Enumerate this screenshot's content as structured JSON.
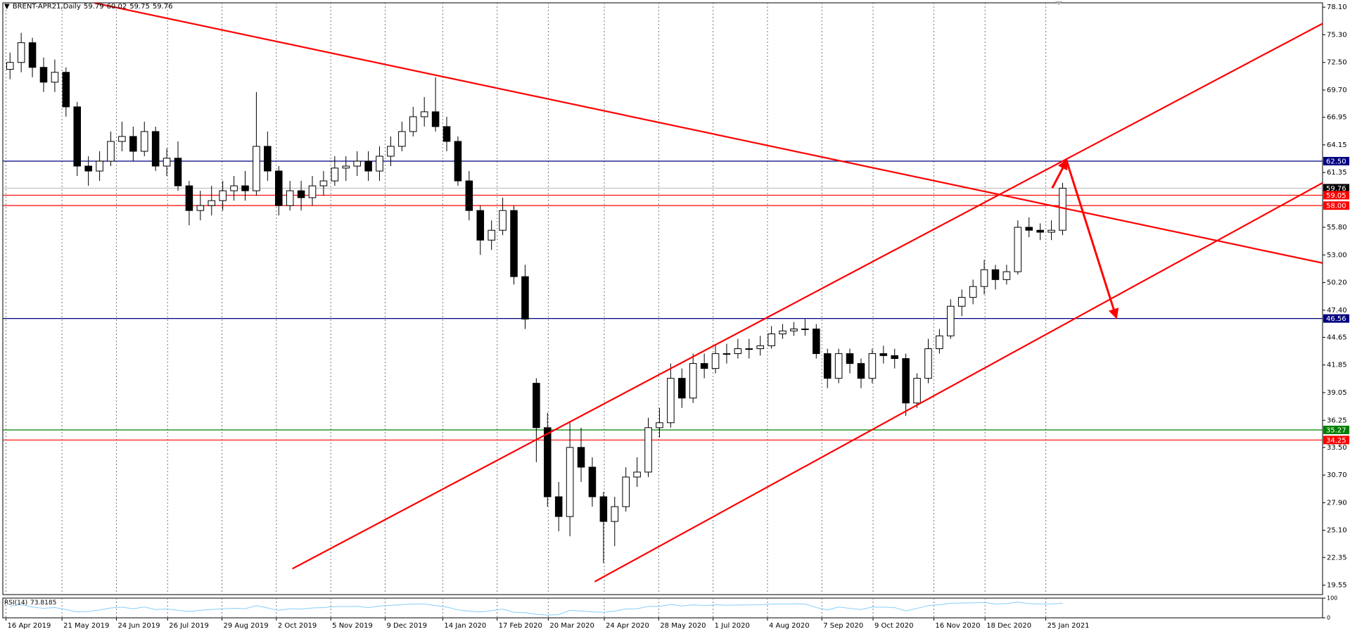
{
  "chart_data": {
    "type": "candlestick",
    "title": "BRENT-APR21,Daily",
    "quote": [
      59.79,
      60.02,
      59.75,
      59.76
    ],
    "x": [
      "2019-04-15",
      "2019-04-22",
      "2019-04-29",
      "2019-05-06",
      "2019-05-13",
      "2019-05-20",
      "2019-05-27",
      "2019-06-03",
      "2019-06-10",
      "2019-06-17",
      "2019-06-24",
      "2019-07-01",
      "2019-07-08",
      "2019-07-15",
      "2019-07-22",
      "2019-07-29",
      "2019-08-05",
      "2019-08-12",
      "2019-08-19",
      "2019-08-26",
      "2019-09-02",
      "2019-09-09",
      "2019-09-16",
      "2019-09-23",
      "2019-09-30",
      "2019-10-07",
      "2019-10-14",
      "2019-10-21",
      "2019-10-28",
      "2019-11-04",
      "2019-11-11",
      "2019-11-18",
      "2019-11-25",
      "2019-12-02",
      "2019-12-09",
      "2019-12-16",
      "2019-12-23",
      "2019-12-30",
      "2020-01-06",
      "2020-01-13",
      "2020-01-20",
      "2020-01-27",
      "2020-02-03",
      "2020-02-10",
      "2020-02-17",
      "2020-02-24",
      "2020-03-02",
      "2020-03-09",
      "2020-03-16",
      "2020-03-23",
      "2020-03-30",
      "2020-04-06",
      "2020-04-13",
      "2020-04-20",
      "2020-04-27",
      "2020-05-04",
      "2020-05-11",
      "2020-05-18",
      "2020-05-25",
      "2020-06-01",
      "2020-06-08",
      "2020-06-15",
      "2020-06-22",
      "2020-06-29",
      "2020-07-06",
      "2020-07-13",
      "2020-07-20",
      "2020-07-27",
      "2020-08-03",
      "2020-08-10",
      "2020-08-17",
      "2020-08-24",
      "2020-08-31",
      "2020-09-07",
      "2020-09-14",
      "2020-09-21",
      "2020-09-28",
      "2020-10-05",
      "2020-10-12",
      "2020-10-19",
      "2020-10-26",
      "2020-11-02",
      "2020-11-09",
      "2020-11-16",
      "2020-11-23",
      "2020-11-30",
      "2020-12-07",
      "2020-12-14",
      "2020-12-21",
      "2020-12-28",
      "2021-01-04",
      "2021-01-11",
      "2021-01-18",
      "2021-01-25",
      "2021-02-01"
    ],
    "open": [
      71.8,
      72.5,
      74.5,
      72.0,
      70.5,
      71.5,
      68.0,
      62.0,
      61.5,
      62.5,
      64.5,
      65.0,
      63.5,
      65.5,
      62.0,
      62.8,
      60.0,
      57.5,
      58.0,
      58.5,
      59.5,
      60.0,
      59.5,
      64.0,
      61.5,
      58.0,
      59.5,
      58.8,
      60.0,
      60.5,
      61.8,
      62.0,
      62.5,
      61.5,
      63.0,
      64.0,
      65.5,
      67.0,
      67.5,
      66.0,
      64.5,
      60.5,
      57.5,
      54.5,
      55.5,
      57.5,
      50.8,
      40.0,
      35.5,
      28.5,
      26.5,
      33.5,
      31.5,
      28.5,
      26.0,
      27.5,
      30.5,
      31.0,
      35.5,
      36.0,
      40.5,
      38.5,
      42.0,
      41.5,
      43.0,
      43.0,
      43.5,
      43.5,
      43.8,
      45.0,
      45.3,
      45.5,
      45.5,
      43.0,
      40.5,
      43.0,
      42.0,
      40.5,
      43.0,
      42.8,
      42.5,
      38.0,
      40.5,
      43.5,
      44.8,
      47.8,
      48.7,
      49.8,
      51.5,
      50.5,
      51.3,
      55.8,
      55.5,
      55.3,
      55.5
    ],
    "high": [
      73.5,
      75.5,
      75.0,
      73.0,
      72.8,
      72.0,
      68.5,
      63.0,
      63.5,
      65.5,
      66.5,
      66.0,
      66.5,
      66.0,
      63.8,
      64.5,
      60.5,
      59.5,
      60.0,
      60.5,
      61.0,
      61.5,
      69.5,
      65.5,
      62.0,
      60.5,
      60.5,
      61.0,
      61.5,
      63.0,
      63.0,
      63.5,
      63.5,
      64.0,
      65.0,
      66.5,
      68.0,
      69.0,
      71.0,
      67.0,
      65.0,
      61.5,
      58.0,
      56.5,
      58.8,
      58.0,
      52.0,
      40.5,
      37.0,
      30.0,
      36.0,
      35.5,
      32.5,
      29.0,
      28.5,
      31.5,
      32.5,
      36.5,
      37.5,
      42.0,
      41.5,
      43.0,
      43.0,
      43.8,
      44.0,
      44.5,
      44.5,
      44.8,
      45.8,
      46.0,
      46.2,
      46.5,
      46.0,
      43.5,
      43.5,
      43.5,
      42.5,
      43.5,
      43.8,
      43.5,
      43.0,
      41.0,
      44.5,
      45.5,
      48.5,
      49.5,
      50.5,
      52.5,
      52.0,
      52.0,
      56.5,
      56.8,
      56.2,
      56.5,
      60.3
    ],
    "low": [
      70.8,
      71.5,
      71.0,
      69.5,
      69.5,
      67.0,
      61.0,
      60.0,
      60.5,
      62.0,
      63.5,
      62.5,
      63.0,
      61.5,
      61.0,
      59.5,
      56.0,
      56.5,
      57.0,
      57.5,
      58.5,
      58.5,
      59.0,
      60.5,
      57.0,
      57.5,
      57.5,
      58.0,
      59.0,
      60.0,
      60.5,
      61.0,
      60.5,
      60.5,
      62.0,
      63.5,
      65.0,
      66.0,
      65.5,
      63.5,
      60.0,
      56.5,
      53.0,
      53.5,
      55.0,
      50.0,
      45.5,
      32.0,
      27.5,
      25.0,
      24.5,
      30.0,
      27.5,
      21.8,
      23.5,
      27.0,
      29.5,
      30.5,
      34.5,
      35.5,
      37.5,
      38.0,
      40.5,
      41.0,
      42.0,
      42.5,
      42.5,
      42.8,
      43.5,
      44.5,
      44.8,
      44.8,
      42.5,
      39.5,
      40.0,
      41.0,
      39.5,
      40.0,
      42.0,
      41.5,
      36.7,
      37.5,
      40.0,
      43.0,
      44.5,
      46.8,
      48.0,
      49.0,
      49.5,
      50.0,
      51.0,
      54.8,
      54.5,
      54.5,
      55.0
    ],
    "close": [
      72.5,
      74.5,
      72.0,
      70.5,
      71.5,
      68.0,
      62.0,
      61.5,
      62.5,
      64.5,
      65.0,
      63.5,
      65.5,
      62.0,
      62.8,
      60.0,
      57.5,
      58.0,
      58.5,
      59.5,
      60.0,
      59.5,
      64.0,
      61.5,
      58.0,
      59.5,
      58.8,
      60.0,
      60.5,
      61.8,
      62.0,
      62.5,
      61.5,
      63.0,
      64.0,
      65.5,
      67.0,
      67.5,
      66.0,
      64.5,
      60.5,
      57.5,
      54.5,
      55.5,
      57.5,
      50.8,
      46.5,
      35.5,
      28.5,
      26.5,
      33.5,
      31.5,
      28.5,
      26.0,
      27.5,
      30.5,
      31.0,
      35.5,
      36.0,
      40.5,
      38.5,
      42.0,
      41.5,
      43.0,
      43.0,
      43.5,
      43.5,
      43.8,
      45.0,
      45.3,
      45.5,
      45.5,
      43.0,
      40.5,
      43.0,
      42.0,
      40.5,
      43.0,
      42.8,
      42.5,
      38.0,
      40.5,
      43.5,
      44.8,
      47.8,
      48.7,
      49.8,
      51.5,
      50.5,
      51.3,
      55.8,
      55.5,
      55.3,
      55.5,
      59.76
    ],
    "up_color": "#ffffff",
    "down_color": "#000000",
    "xlim": [
      "2019-04-14",
      "2021-07-17"
    ],
    "xticks": [
      {
        "value": "2019-04-16",
        "label": "16 Apr 2019"
      },
      {
        "value": "2019-05-21",
        "label": "21 May 2019"
      },
      {
        "value": "2019-06-24",
        "label": "24 Jun 2019"
      },
      {
        "value": "2019-07-26",
        "label": "26 Jul 2019"
      },
      {
        "value": "2019-08-29",
        "label": "29 Aug 2019"
      },
      {
        "value": "2019-10-02",
        "label": "2 Oct 2019"
      },
      {
        "value": "2019-11-05",
        "label": "5 Nov 2019"
      },
      {
        "value": "2019-12-09",
        "label": "9 Dec 2019"
      },
      {
        "value": "2020-01-14",
        "label": "14 Jan 2020"
      },
      {
        "value": "2020-02-17",
        "label": "17 Feb 2020"
      },
      {
        "value": "2020-03-20",
        "label": "20 Mar 2020"
      },
      {
        "value": "2020-04-24",
        "label": "24 Apr 2020"
      },
      {
        "value": "2020-05-28",
        "label": "28 May 2020"
      },
      {
        "value": "2020-07-01",
        "label": "1 Jul 2020"
      },
      {
        "value": "2020-08-04",
        "label": "4 Aug 2020"
      },
      {
        "value": "2020-09-07",
        "label": "7 Sep 2020"
      },
      {
        "value": "2020-10-09",
        "label": "9 Oct 2020"
      },
      {
        "value": "2020-11-16",
        "label": "16 Nov 2020"
      },
      {
        "value": "2020-12-18",
        "label": "18 Dec 2020"
      },
      {
        "value": "2021-01-25",
        "label": "25 Jan 2021"
      }
    ],
    "ylim": [
      18.59,
      78.54
    ],
    "yticks": [
      {
        "value": 78.1,
        "label": "78.10"
      },
      {
        "value": 75.3,
        "label": "75.30"
      },
      {
        "value": 72.5,
        "label": "72.50"
      },
      {
        "value": 69.7,
        "label": "69.70"
      },
      66.95,
      64.15,
      61.35,
      {
        "value": 55.8,
        "label": "55.80"
      },
      {
        "value": 53,
        "label": "53.00"
      },
      {
        "value": 50.2,
        "label": "50.20"
      },
      {
        "value": 47.4,
        "label": "47.40"
      },
      44.65,
      41.85,
      39.05,
      36.25,
      {
        "value": 33.5,
        "label": "33.50"
      },
      {
        "value": 30.7,
        "label": "30.70"
      },
      {
        "value": 27.9,
        "label": "27.90"
      },
      {
        "value": 25.1,
        "label": "25.10"
      },
      22.35,
      19.55
    ],
    "grid": true,
    "levels": [
      {
        "value": 62.5,
        "label": "62.50",
        "color": "#000080",
        "box_color": "#000080"
      },
      {
        "value": 59.76,
        "color": "#c0c0c0",
        "box_color": "#000000"
      },
      {
        "value": 59.05,
        "color": "#ff0000",
        "box_color": "#ff0000"
      },
      {
        "value": 58,
        "label": "58.00",
        "color": "#ff0000",
        "box_color": "#ff0000"
      },
      {
        "value": 46.56,
        "color": "#000080",
        "box_color": "#000080"
      },
      {
        "value": 35.27,
        "color": "#008000",
        "box_color": "#008000"
      },
      {
        "value": 34.25,
        "color": "#ff0000",
        "box_color": "#ff0000"
      }
    ],
    "trendlines": [
      {
        "x": [
          "2019-06-10",
          "2021-07-17"
        ],
        "y": [
          78.54,
          52.18
        ],
        "color": "#ff0000"
      },
      {
        "x": [
          "2019-10-12",
          "2021-07-17"
        ],
        "y": [
          21.21,
          76.44
        ],
        "color": "#ff0000"
      },
      {
        "x": [
          "2020-04-18",
          "2021-07-17"
        ],
        "y": [
          19.9,
          60.3
        ],
        "color": "#ff0000"
      }
    ],
    "arrows": [
      {
        "x": [
          "2021-01-29",
          "2021-02-07"
        ],
        "y": [
          59.77,
          62.55
        ],
        "color": "#ff0000"
      },
      {
        "x": [
          "2021-02-07",
          "2021-03-10"
        ],
        "y": [
          62.55,
          46.69
        ],
        "color": "#ff0000"
      }
    ],
    "rsi": {
      "label": "RSI(14)",
      "value": 73.8185,
      "color": "#87cefa",
      "ylim": [
        0,
        100
      ],
      "yticks": [
        0,
        100
      ],
      "values": [
        60,
        66,
        55,
        48,
        52,
        42,
        30,
        32,
        40,
        50,
        54,
        46,
        55,
        42,
        45,
        38,
        32,
        38,
        42,
        46,
        48,
        46,
        62,
        50,
        38,
        46,
        44,
        50,
        52,
        57,
        57,
        58,
        52,
        60,
        63,
        67,
        70,
        70,
        62,
        55,
        40,
        34,
        30,
        36,
        44,
        28,
        26,
        18,
        14,
        16,
        38,
        35,
        30,
        28,
        34,
        45,
        46,
        58,
        58,
        68,
        60,
        66,
        62,
        66,
        64,
        65,
        65,
        66,
        70,
        70,
        71,
        70,
        52,
        40,
        55,
        48,
        42,
        55,
        54,
        52,
        35,
        48,
        62,
        66,
        74,
        75,
        76,
        78,
        70,
        72,
        80,
        72,
        70,
        71,
        73.8
      ]
    }
  }
}
